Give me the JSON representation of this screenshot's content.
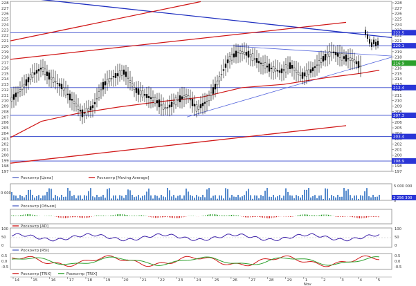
{
  "panels": {
    "price": {
      "legend": [
        {
          "label": "Росконтр [Цена]",
          "color": "#5a6cc8"
        },
        {
          "label": "Росконтр [Moving Average]",
          "color": "#d02020"
        }
      ],
      "y_ticks": [
        "228",
        "227",
        "226",
        "225",
        "224",
        "223",
        "222",
        "221",
        "220",
        "219",
        "218",
        "217",
        "216",
        "215",
        "214",
        "213",
        "212",
        "211",
        "210",
        "209",
        "208",
        "207",
        "206",
        "205",
        "204",
        "203",
        "202",
        "201",
        "200",
        "199",
        "198",
        "197"
      ],
      "badges": [
        {
          "text": "222.5",
          "value": 222.5,
          "bg": "#2a35d6",
          "fg": "#ffffff"
        },
        {
          "text": "220.1",
          "value": 220.1,
          "bg": "#2a35d6",
          "fg": "#ffffff"
        },
        {
          "text": "216.9",
          "value": 216.9,
          "bg": "#2ca02c",
          "fg": "#ffffff"
        },
        {
          "text": "212.4",
          "value": 212.4,
          "bg": "#2a35d6",
          "fg": "#ffffff"
        },
        {
          "text": "207.3",
          "value": 207.3,
          "bg": "#2a35d6",
          "fg": "#ffffff"
        },
        {
          "text": "203.4",
          "value": 203.4,
          "bg": "#2a35d6",
          "fg": "#ffffff"
        },
        {
          "text": "198.9",
          "value": 198.9,
          "bg": "#2a35d6",
          "fg": "#ffffff"
        }
      ]
    },
    "volume": {
      "legend": [
        {
          "label": "Росконтр [Объем]",
          "color": "#5a6cc8"
        }
      ],
      "left_label": "0 000",
      "right_ticks": [
        "5 000 000",
        "0"
      ],
      "badge": "2 256 300"
    },
    "ad": {
      "legend": [
        {
          "label": "Росконтр [AD]",
          "color": "#d02020"
        }
      ]
    },
    "rsi": {
      "legend": [
        {
          "label": "Росконтр [RSI]",
          "color": "#5a6cc8"
        }
      ],
      "left_ticks": [
        "100",
        "50",
        "0"
      ],
      "right_ticks": [
        "100",
        "50",
        "0"
      ]
    },
    "trix": {
      "legend": [
        {
          "label": "Росконтр [TRIX]",
          "color": "#d02020"
        },
        {
          "label": "Росконтр [TRIX]",
          "color": "#2ca02c"
        }
      ],
      "left_ticks": [
        "0.5",
        "0.0",
        "-0.5"
      ],
      "right_ticks": [
        "0.5",
        "0.0",
        "-0.5"
      ]
    }
  },
  "x_axis": {
    "days": [
      "14",
      "15",
      "16",
      "17",
      "18",
      "19",
      "20",
      "21",
      "22",
      "23",
      "24",
      "25",
      "26",
      "27",
      "28",
      "29",
      "1",
      "2",
      "3",
      "4",
      "5"
    ],
    "month_label": "Nov"
  }
}
